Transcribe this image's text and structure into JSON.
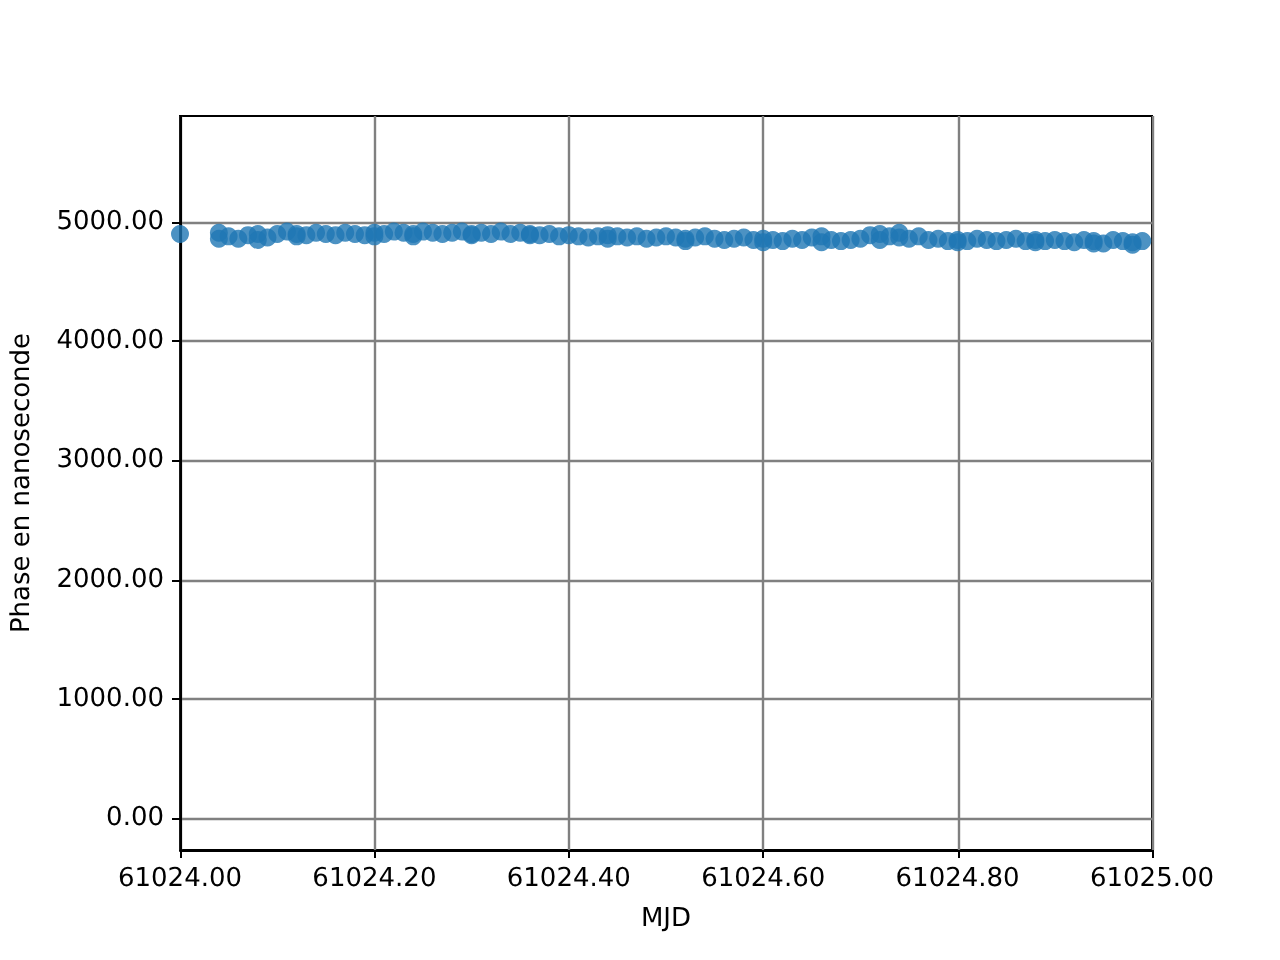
{
  "chart_data": {
    "type": "scatter",
    "xlabel": "MJD",
    "ylabel": "Phase en nanoseconde",
    "xlim": [
      61024.0,
      61025.0
    ],
    "ylim": [
      -270,
      5890
    ],
    "xticks": [
      {
        "value": 61024.0,
        "label": "61024.00"
      },
      {
        "value": 61024.2,
        "label": "61024.20"
      },
      {
        "value": 61024.4,
        "label": "61024.40"
      },
      {
        "value": 61024.6,
        "label": "61024.60"
      },
      {
        "value": 61024.8,
        "label": "61024.80"
      },
      {
        "value": 61025.0,
        "label": "61025.00"
      }
    ],
    "yticks": [
      {
        "value": 0,
        "label": "0.00"
      },
      {
        "value": 1000,
        "label": "1000.00"
      },
      {
        "value": 2000,
        "label": "2000.00"
      },
      {
        "value": 3000,
        "label": "3000.00"
      },
      {
        "value": 4000,
        "label": "4000.00"
      },
      {
        "value": 5000,
        "label": "5000.00"
      }
    ],
    "grid": true,
    "marker": "circle",
    "series": [
      {
        "color": "#1f77b4",
        "x": [
          61024.0,
          61024.04,
          61024.05,
          61024.06,
          61024.07,
          61024.08,
          61024.09,
          61024.1,
          61024.11,
          61024.12,
          61024.13,
          61024.14,
          61024.15,
          61024.16,
          61024.17,
          61024.18,
          61024.19,
          61024.2,
          61024.21,
          61024.22,
          61024.23,
          61024.24,
          61024.25,
          61024.26,
          61024.27,
          61024.28,
          61024.29,
          61024.3,
          61024.31,
          61024.32,
          61024.33,
          61024.34,
          61024.35,
          61024.36,
          61024.37,
          61024.38,
          61024.39,
          61024.4,
          61024.41,
          61024.42,
          61024.43,
          61024.44,
          61024.45,
          61024.46,
          61024.47,
          61024.48,
          61024.49,
          61024.5,
          61024.51,
          61024.52,
          61024.53,
          61024.54,
          61024.55,
          61024.56,
          61024.57,
          61024.58,
          61024.59,
          61024.6,
          61024.61,
          61024.62,
          61024.63,
          61024.64,
          61024.65,
          61024.66,
          61024.67,
          61024.68,
          61024.69,
          61024.7,
          61024.71,
          61024.72,
          61024.73,
          61024.74,
          61024.75,
          61024.76,
          61024.77,
          61024.78,
          61024.79,
          61024.8,
          61024.81,
          61024.82,
          61024.83,
          61024.84,
          61024.85,
          61024.86,
          61024.87,
          61024.88,
          61024.89,
          61024.9,
          61024.91,
          61024.92,
          61024.93,
          61024.94,
          61024.95,
          61024.96,
          61024.97,
          61024.98,
          61024.99,
          61024.04,
          61024.08,
          61024.12,
          61024.2,
          61024.24,
          61024.3,
          61024.36,
          61024.44,
          61024.52,
          61024.6,
          61024.66,
          61024.72,
          61024.74,
          61024.8,
          61024.88,
          61024.94,
          61024.98
        ],
        "values": [
          4900,
          4910,
          4880,
          4860,
          4890,
          4900,
          4870,
          4900,
          4920,
          4900,
          4890,
          4910,
          4900,
          4890,
          4910,
          4900,
          4890,
          4910,
          4900,
          4920,
          4910,
          4900,
          4920,
          4910,
          4900,
          4910,
          4920,
          4900,
          4910,
          4900,
          4920,
          4900,
          4910,
          4900,
          4890,
          4900,
          4880,
          4890,
          4880,
          4870,
          4880,
          4890,
          4880,
          4870,
          4880,
          4860,
          4870,
          4880,
          4870,
          4860,
          4870,
          4880,
          4860,
          4850,
          4860,
          4870,
          4850,
          4860,
          4850,
          4840,
          4860,
          4850,
          4870,
          4880,
          4850,
          4840,
          4850,
          4860,
          4890,
          4900,
          4880,
          4870,
          4860,
          4880,
          4850,
          4860,
          4840,
          4850,
          4840,
          4860,
          4850,
          4840,
          4850,
          4860,
          4840,
          4850,
          4840,
          4850,
          4840,
          4830,
          4850,
          4840,
          4820,
          4850,
          4840,
          4830,
          4840,
          4860,
          4850,
          4880,
          4880,
          4880,
          4890,
          4890,
          4860,
          4840,
          4830,
          4830,
          4850,
          4910,
          4830,
          4830,
          4820,
          4810
        ]
      }
    ]
  }
}
